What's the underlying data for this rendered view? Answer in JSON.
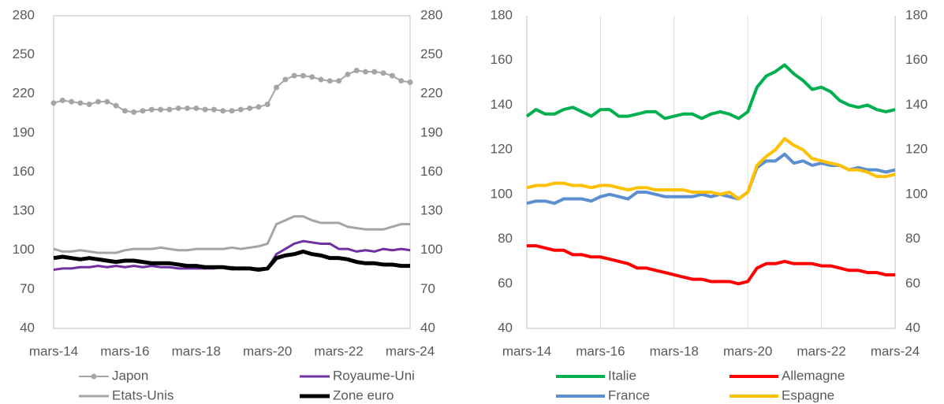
{
  "chart_data": [
    {
      "type": "line",
      "frame": true,
      "grid": false,
      "categories": [
        "mars-14",
        null,
        null,
        null,
        null,
        null,
        null,
        null,
        "mars-16",
        null,
        null,
        null,
        null,
        null,
        null,
        null,
        "mars-18",
        null,
        null,
        null,
        null,
        null,
        null,
        null,
        "mars-20",
        null,
        null,
        null,
        null,
        null,
        null,
        null,
        "mars-22",
        null,
        null,
        null,
        null,
        null,
        null,
        null,
        "mars-24"
      ],
      "ylim": [
        40,
        280
      ],
      "yticks": [
        40,
        70,
        100,
        130,
        160,
        190,
        220,
        250,
        280
      ],
      "y2lim": [
        40,
        280
      ],
      "y2ticks": [
        40,
        70,
        100,
        130,
        160,
        190,
        220,
        250,
        280
      ],
      "series": [
        {
          "name": "Japon",
          "color": "#a5a5a5",
          "line_width": 2,
          "marker": "circle",
          "values": [
            213,
            215,
            214,
            213,
            212,
            214,
            214,
            211,
            207,
            206,
            207,
            208,
            208,
            208,
            209,
            209,
            209,
            208,
            208,
            207,
            207,
            208,
            209,
            210,
            212,
            225,
            231,
            234,
            234,
            233,
            231,
            230,
            230,
            235,
            238,
            237,
            237,
            236,
            234,
            230,
            229
          ]
        },
        {
          "name": "Royaume-Uni",
          "color": "#7030a0",
          "line_width": 3,
          "values": [
            85,
            86,
            86,
            87,
            87,
            88,
            87,
            88,
            87,
            88,
            87,
            88,
            87,
            87,
            86,
            86,
            86,
            86,
            86,
            87,
            87,
            86,
            86,
            86,
            86,
            97,
            101,
            105,
            107,
            106,
            105,
            105,
            101,
            101,
            99,
            100,
            99,
            101,
            100,
            101,
            100
          ]
        },
        {
          "name": "Etats-Unis",
          "color": "#a5a5a5",
          "line_width": 3,
          "values": [
            101,
            99,
            99,
            100,
            99,
            98,
            98,
            98,
            100,
            101,
            101,
            101,
            102,
            101,
            100,
            100,
            101,
            101,
            101,
            101,
            102,
            101,
            102,
            103,
            105,
            120,
            123,
            126,
            126,
            123,
            121,
            121,
            121,
            118,
            117,
            116,
            116,
            116,
            118,
            120,
            120
          ]
        },
        {
          "name": "Zone euro",
          "color": "#000000",
          "line_width": 5,
          "values": [
            94,
            95,
            94,
            93,
            94,
            93,
            92,
            91,
            92,
            92,
            91,
            90,
            90,
            90,
            89,
            88,
            88,
            87,
            87,
            87,
            86,
            86,
            86,
            85,
            86,
            94,
            96,
            97,
            99,
            97,
            96,
            94,
            94,
            93,
            91,
            90,
            90,
            89,
            89,
            88,
            88
          ]
        }
      ]
    },
    {
      "type": "line",
      "frame": false,
      "xgrid": true,
      "categories": [
        "mars-14",
        null,
        null,
        null,
        null,
        null,
        null,
        null,
        "mars-16",
        null,
        null,
        null,
        null,
        null,
        null,
        null,
        "mars-18",
        null,
        null,
        null,
        null,
        null,
        null,
        null,
        "mars-20",
        null,
        null,
        null,
        null,
        null,
        null,
        null,
        "mars-22",
        null,
        null,
        null,
        null,
        null,
        null,
        null,
        "mars-24"
      ],
      "ylim": [
        40,
        180
      ],
      "yticks": [
        40,
        60,
        80,
        100,
        120,
        140,
        160,
        180
      ],
      "y2lim": [
        40,
        180
      ],
      "y2ticks": [
        40,
        60,
        80,
        100,
        120,
        140,
        160,
        180
      ],
      "series": [
        {
          "name": "Italie",
          "color": "#00b050",
          "line_width": 4,
          "values": [
            135,
            138,
            136,
            136,
            138,
            139,
            137,
            135,
            138,
            138,
            135,
            135,
            136,
            137,
            137,
            134,
            135,
            136,
            136,
            134,
            136,
            137,
            136,
            134,
            137,
            148,
            153,
            155,
            158,
            154,
            151,
            147,
            148,
            146,
            142,
            140,
            139,
            140,
            138,
            137,
            138
          ]
        },
        {
          "name": "Allemagne",
          "color": "#ff0000",
          "line_width": 4,
          "values": [
            77,
            77,
            76,
            75,
            75,
            73,
            73,
            72,
            72,
            71,
            70,
            69,
            67,
            67,
            66,
            65,
            64,
            63,
            62,
            62,
            61,
            61,
            61,
            60,
            61,
            67,
            69,
            69,
            70,
            69,
            69,
            69,
            68,
            68,
            67,
            66,
            66,
            65,
            65,
            64,
            64
          ]
        },
        {
          "name": "France",
          "color": "#5b8fd0",
          "line_width": 4,
          "values": [
            96,
            97,
            97,
            96,
            98,
            98,
            98,
            97,
            99,
            100,
            99,
            98,
            101,
            101,
            100,
            99,
            99,
            99,
            99,
            100,
            99,
            100,
            99,
            98,
            101,
            112,
            115,
            115,
            118,
            114,
            115,
            113,
            114,
            113,
            113,
            111,
            112,
            111,
            111,
            110,
            111
          ]
        },
        {
          "name": "Espagne",
          "color": "#ffc000",
          "line_width": 4,
          "values": [
            103,
            104,
            104,
            105,
            105,
            104,
            104,
            103,
            104,
            104,
            103,
            102,
            103,
            103,
            102,
            102,
            102,
            102,
            101,
            101,
            101,
            100,
            101,
            98,
            101,
            113,
            117,
            120,
            125,
            122,
            120,
            116,
            115,
            114,
            113,
            111,
            111,
            110,
            108,
            108,
            109
          ]
        }
      ]
    }
  ]
}
